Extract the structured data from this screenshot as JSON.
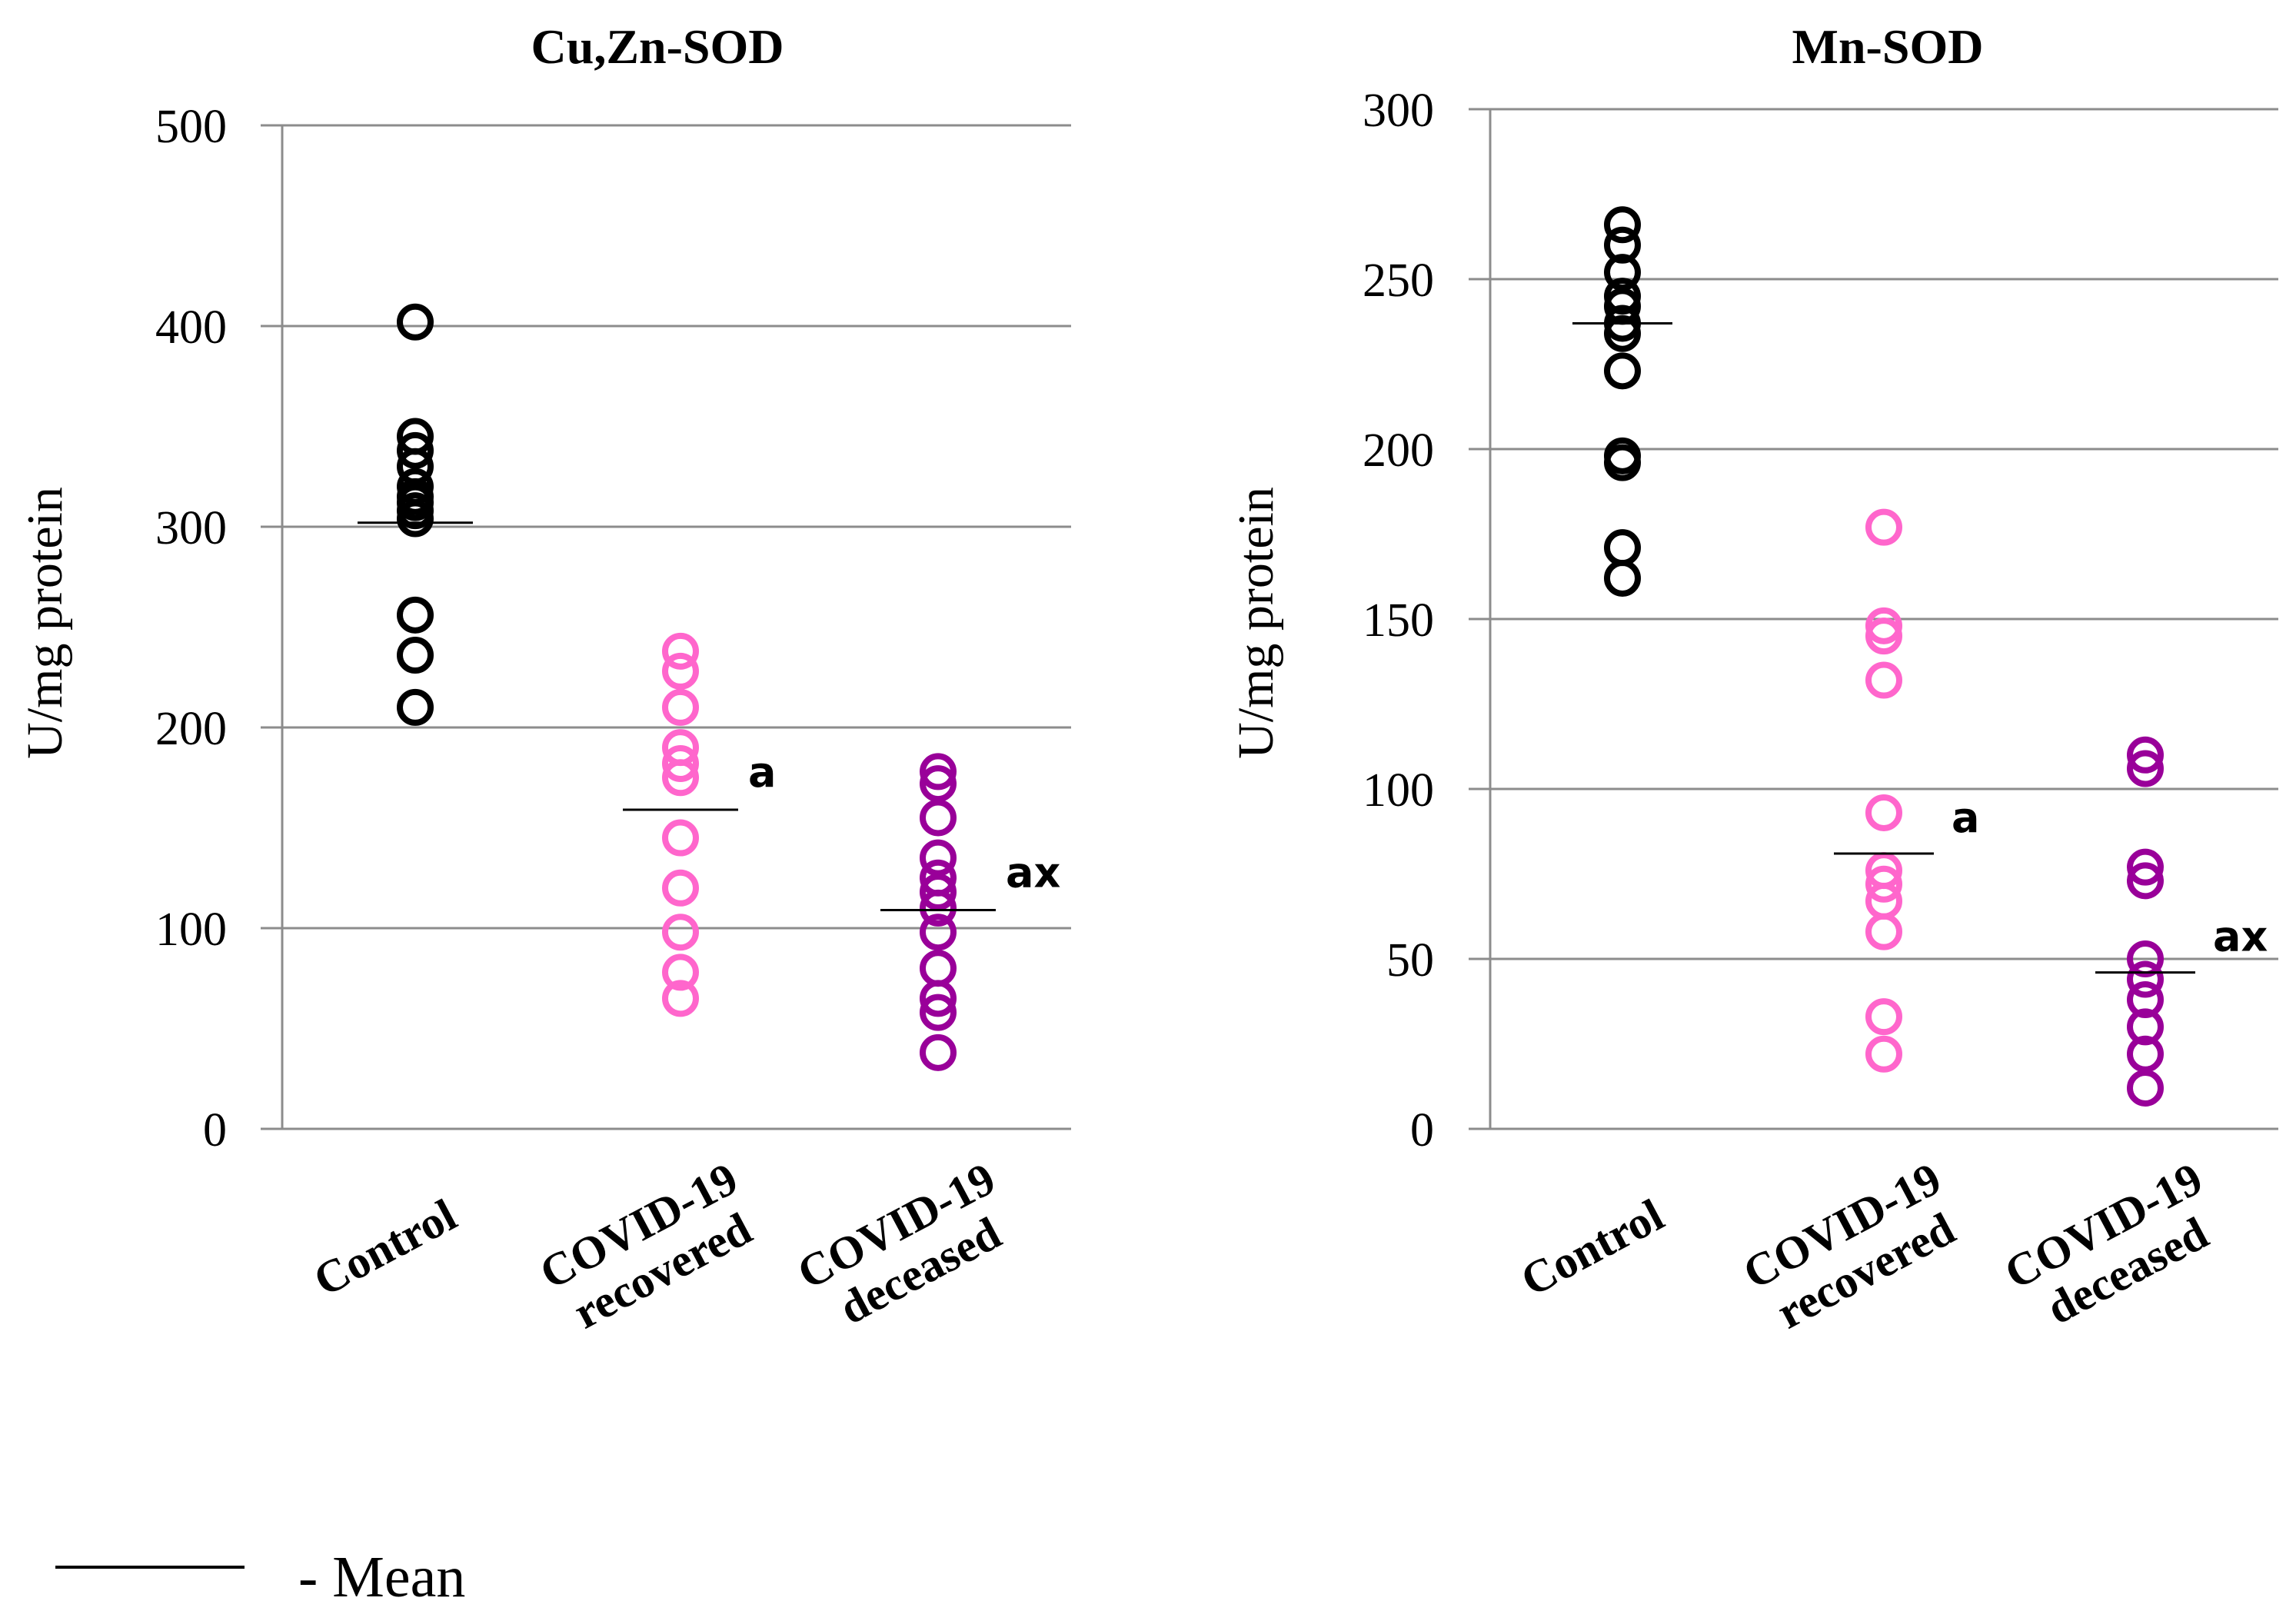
{
  "legend": {
    "label": "- Mean",
    "line_color": "#000000"
  },
  "chart_data": [
    {
      "type": "scatter",
      "title": "Cu,Zn-SOD",
      "ylabel": "U/mg protein",
      "ylim": [
        0,
        500
      ],
      "yticks": [
        0,
        100,
        200,
        300,
        400,
        500
      ],
      "grid": true,
      "categories": [
        "Control",
        [
          "COVID-19",
          "recovered"
        ],
        [
          "COVID-19",
          "deceased"
        ]
      ],
      "series": [
        {
          "category": "Control",
          "color": "#000000",
          "mean": 302,
          "values": [
            402,
            345,
            338,
            330,
            320,
            315,
            312,
            308,
            304,
            256,
            236,
            210
          ],
          "annotation": ""
        },
        {
          "category": "COVID-19 recovered",
          "color": "#ff66cc",
          "mean": 159,
          "values": [
            238,
            228,
            210,
            190,
            182,
            175,
            145,
            120,
            98,
            78,
            65
          ],
          "annotation": "a"
        },
        {
          "category": "COVID-19 deceased",
          "color": "#990099",
          "mean": 109,
          "values": [
            178,
            172,
            155,
            135,
            125,
            118,
            110,
            98,
            80,
            65,
            58,
            38
          ],
          "annotation": "ax"
        }
      ]
    },
    {
      "type": "scatter",
      "title": "Mn-SOD",
      "ylabel": "U/mg protein",
      "ylim": [
        0,
        300
      ],
      "yticks": [
        0,
        50,
        100,
        150,
        200,
        250,
        300
      ],
      "grid": true,
      "categories": [
        "Control",
        [
          "COVID-19",
          "recovered"
        ],
        [
          "COVID-19",
          "deceased"
        ]
      ],
      "series": [
        {
          "category": "Control",
          "color": "#000000",
          "mean": 237,
          "values": [
            266,
            260,
            252,
            245,
            242,
            237,
            234,
            223,
            198,
            196,
            171,
            162
          ],
          "annotation": ""
        },
        {
          "category": "COVID-19 recovered",
          "color": "#ff66cc",
          "mean": 81,
          "values": [
            177,
            148,
            145,
            132,
            93,
            76,
            72,
            67,
            58,
            33,
            22
          ],
          "annotation": "a"
        },
        {
          "category": "COVID-19 deceased",
          "color": "#990099",
          "mean": 46,
          "values": [
            110,
            106,
            77,
            73,
            50,
            44,
            38,
            30,
            22,
            12
          ],
          "annotation": "ax"
        }
      ]
    }
  ]
}
